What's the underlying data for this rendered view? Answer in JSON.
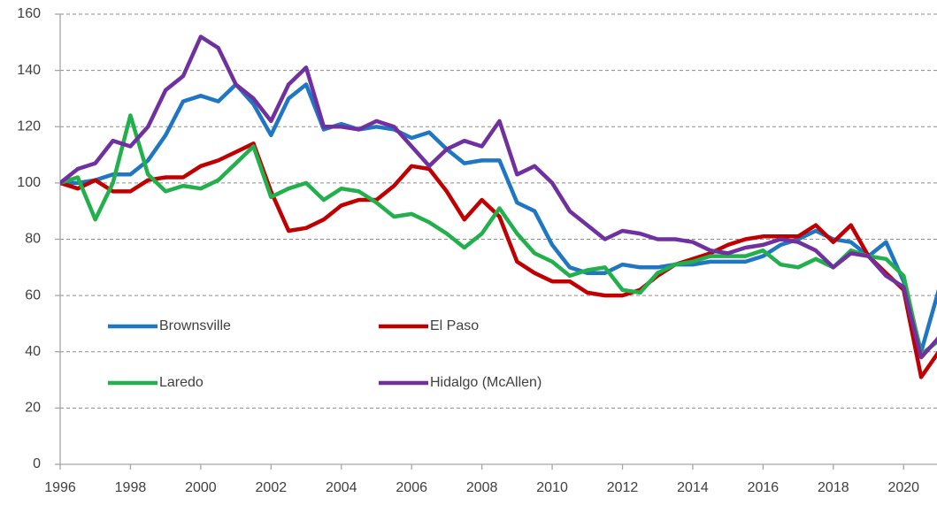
{
  "chart_data": {
    "type": "line",
    "x": [
      1996,
      1996.5,
      1997,
      1997.5,
      1998,
      1998.5,
      1999,
      1999.5,
      2000,
      2000.5,
      2001,
      2001.5,
      2002,
      2002.5,
      2003,
      2003.5,
      2004,
      2004.5,
      2005,
      2005.5,
      2006,
      2006.5,
      2007,
      2007.5,
      2008,
      2008.5,
      2009,
      2009.5,
      2010,
      2010.5,
      2011,
      2011.5,
      2012,
      2012.5,
      2013,
      2013.5,
      2014,
      2014.5,
      2015,
      2015.5,
      2016,
      2016.5,
      2017,
      2017.5,
      2018,
      2018.5,
      2019,
      2019.5,
      2020,
      2020.5,
      2021
    ],
    "series": [
      {
        "name": "Brownsville",
        "color": "#1f77c4",
        "values": [
          100,
          100,
          101,
          103,
          103,
          108,
          117,
          129,
          131,
          129,
          135,
          128,
          117,
          130,
          135,
          119,
          121,
          119,
          120,
          119,
          116,
          118,
          112,
          107,
          108,
          108,
          93,
          90,
          78,
          70,
          68,
          68,
          71,
          70,
          70,
          71,
          71,
          72,
          72,
          72,
          74,
          78,
          80,
          83,
          80,
          79,
          74,
          79,
          65,
          40,
          62
        ]
      },
      {
        "name": "El Paso",
        "color": "#c00000",
        "values": [
          100,
          98,
          101,
          97,
          97,
          101,
          102,
          102,
          106,
          108,
          111,
          114,
          97,
          83,
          84,
          87,
          92,
          94,
          94,
          99,
          106,
          105,
          97,
          87,
          94,
          88,
          72,
          68,
          65,
          65,
          61,
          60,
          60,
          62,
          67,
          71,
          73,
          75,
          78,
          80,
          81,
          81,
          81,
          85,
          79,
          85,
          74,
          68,
          62,
          31,
          40
        ]
      },
      {
        "name": "Laredo",
        "color": "#21b04b",
        "values": [
          100,
          102,
          87,
          100,
          124,
          103,
          97,
          99,
          98,
          101,
          107,
          113,
          95,
          98,
          100,
          94,
          98,
          97,
          93,
          88,
          89,
          86,
          82,
          77,
          82,
          91,
          82,
          75,
          72,
          67,
          69,
          70,
          62,
          61,
          68,
          71,
          72,
          74,
          74,
          74,
          76,
          71,
          70,
          73,
          70,
          76,
          74,
          73,
          67,
          39,
          44
        ]
      },
      {
        "name": "Hidalgo (McAllen)",
        "color": "#7030a0",
        "values": [
          100,
          105,
          107,
          115,
          113,
          120,
          133,
          138,
          152,
          148,
          135,
          130,
          122,
          135,
          141,
          120,
          120,
          119,
          122,
          120,
          113,
          106,
          112,
          115,
          113,
          122,
          103,
          106,
          100,
          90,
          85,
          80,
          83,
          82,
          80,
          80,
          79,
          76,
          75,
          77,
          78,
          80,
          79,
          76,
          70,
          75,
          74,
          67,
          63,
          38,
          45
        ]
      }
    ],
    "xlim": [
      1996,
      2021
    ],
    "xticks": [
      1996,
      1998,
      2000,
      2002,
      2004,
      2006,
      2008,
      2010,
      2012,
      2014,
      2016,
      2018,
      2020
    ],
    "ylim": [
      0,
      160
    ],
    "yticks": [
      0,
      20,
      40,
      60,
      80,
      100,
      120,
      140,
      160
    ],
    "grid": true,
    "legend": "lower left"
  }
}
